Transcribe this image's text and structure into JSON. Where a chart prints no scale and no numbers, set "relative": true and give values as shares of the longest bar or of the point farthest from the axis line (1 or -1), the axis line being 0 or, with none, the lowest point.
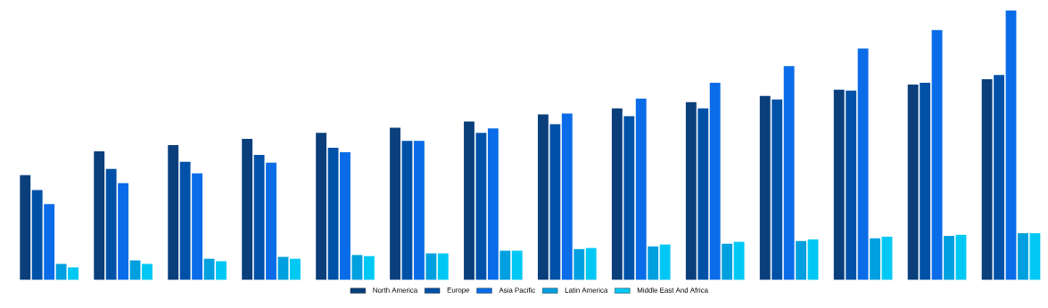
{
  "chart_data": {
    "type": "bar",
    "relative": true,
    "legend": "bottom",
    "categories": [
      null,
      null,
      null,
      null,
      null,
      null,
      null,
      null,
      null,
      null,
      null,
      null,
      null,
      null
    ],
    "series": [
      {
        "name": "North America",
        "color": "#0a3f7c",
        "values": [
          0.389,
          0.477,
          0.5,
          0.523,
          0.546,
          0.565,
          0.588,
          0.614,
          0.637,
          0.66,
          0.683,
          0.706,
          0.725,
          0.745
        ]
      },
      {
        "name": "Europe",
        "color": "#0052a8",
        "values": [
          0.333,
          0.412,
          0.438,
          0.464,
          0.49,
          0.516,
          0.546,
          0.578,
          0.608,
          0.637,
          0.67,
          0.703,
          0.732,
          0.761
        ]
      },
      {
        "name": "Asia Pacific",
        "color": "#0a6ce8",
        "values": [
          0.281,
          0.359,
          0.395,
          0.435,
          0.474,
          0.516,
          0.562,
          0.618,
          0.673,
          0.732,
          0.794,
          0.859,
          0.928,
          1
        ]
      },
      {
        "name": "Latin America",
        "color": "#00a0e0",
        "values": [
          0.059,
          0.072,
          0.078,
          0.085,
          0.092,
          0.098,
          0.108,
          0.114,
          0.124,
          0.134,
          0.144,
          0.154,
          0.163,
          0.173
        ]
      },
      {
        "name": "Middle East And Africa",
        "color": "#00c8f5",
        "values": [
          0.046,
          0.059,
          0.069,
          0.078,
          0.088,
          0.098,
          0.108,
          0.118,
          0.131,
          0.141,
          0.15,
          0.16,
          0.167,
          0.173
        ]
      }
    ]
  }
}
